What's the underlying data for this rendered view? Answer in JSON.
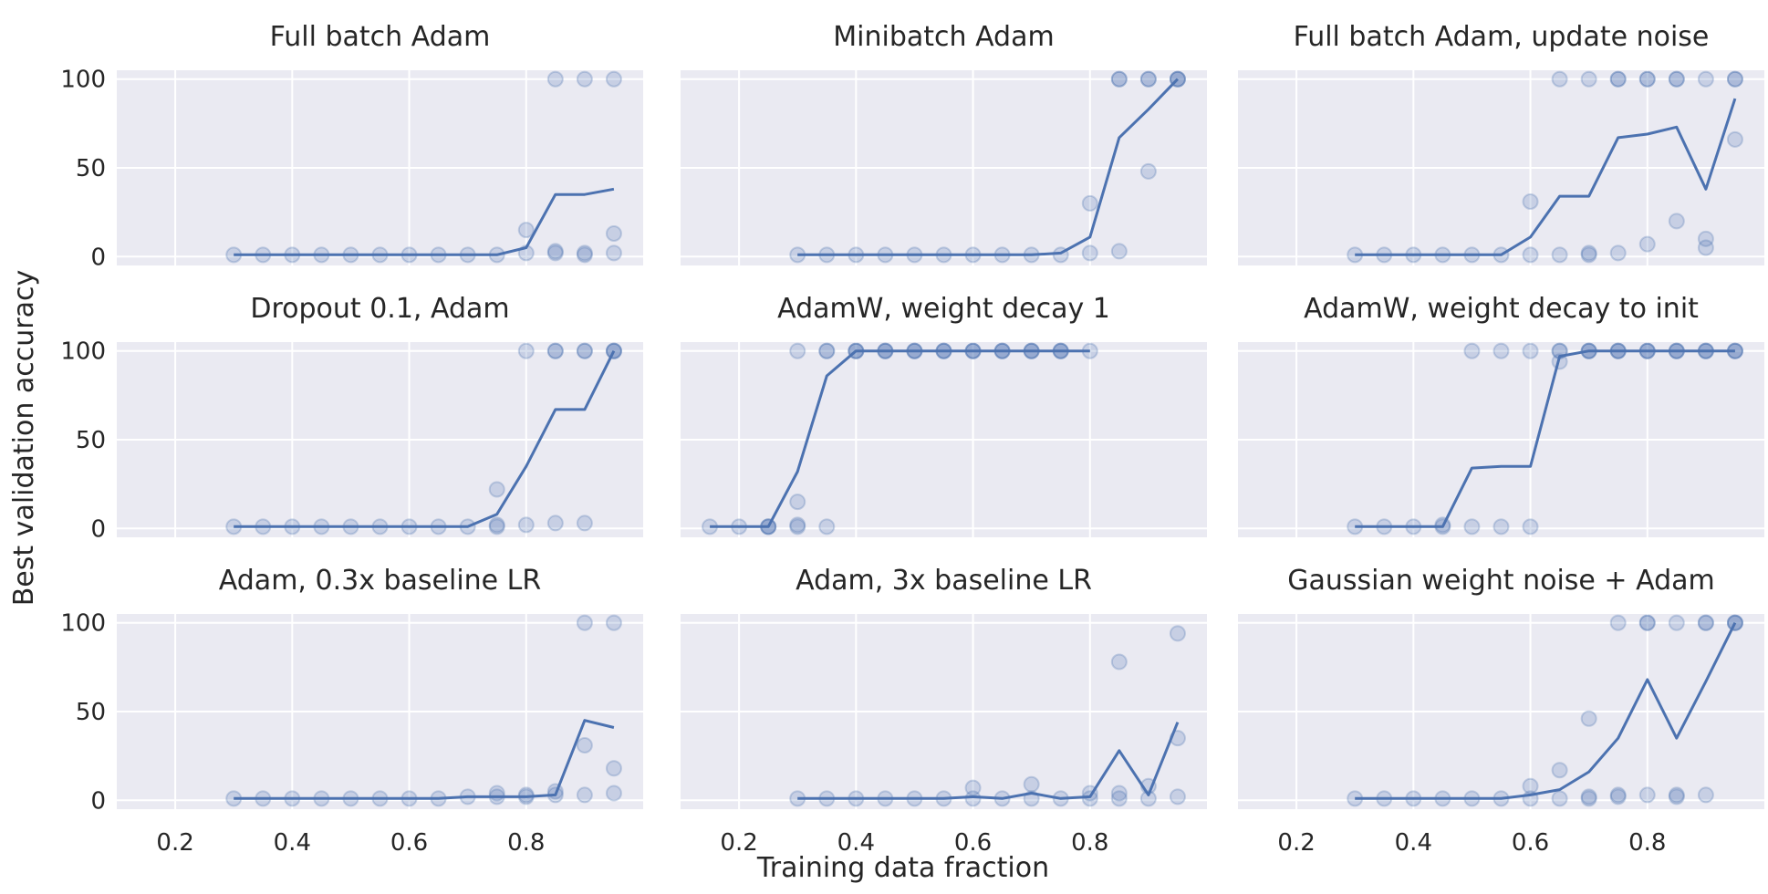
{
  "chart_data": {
    "type": "scatter",
    "xlabel": "Training data fraction",
    "ylabel": "Best validation accuracy",
    "xlim": [
      0.1,
      1.0
    ],
    "ylim": [
      -5,
      105
    ],
    "x_ticks": [
      0.2,
      0.4,
      0.6,
      0.8
    ],
    "x_tick_labels": [
      "0.2",
      "0.4",
      "0.6",
      "0.8"
    ],
    "y_ticks": [
      0,
      50,
      100
    ],
    "y_tick_labels": [
      "0",
      "50",
      "100"
    ],
    "grid": true,
    "color": "#4C72B0",
    "background": "#EAEAF2",
    "panels": [
      {
        "title": "Full batch Adam",
        "line": {
          "x": [
            0.3,
            0.35,
            0.4,
            0.45,
            0.5,
            0.55,
            0.6,
            0.65,
            0.7,
            0.75,
            0.8,
            0.85,
            0.9,
            0.95
          ],
          "y": [
            1,
            1,
            1,
            1,
            1,
            1,
            1,
            1,
            1,
            1,
            5,
            35,
            35,
            38
          ]
        },
        "points": [
          [
            0.3,
            1
          ],
          [
            0.35,
            1
          ],
          [
            0.4,
            1
          ],
          [
            0.45,
            1
          ],
          [
            0.5,
            1
          ],
          [
            0.55,
            1
          ],
          [
            0.6,
            1
          ],
          [
            0.65,
            1
          ],
          [
            0.7,
            1
          ],
          [
            0.75,
            1
          ],
          [
            0.8,
            15
          ],
          [
            0.8,
            2
          ],
          [
            0.85,
            100
          ],
          [
            0.85,
            3
          ],
          [
            0.85,
            2
          ],
          [
            0.9,
            100
          ],
          [
            0.9,
            2
          ],
          [
            0.9,
            1
          ],
          [
            0.95,
            100
          ],
          [
            0.95,
            13
          ],
          [
            0.95,
            2
          ]
        ]
      },
      {
        "title": "Minibatch Adam",
        "line": {
          "x": [
            0.3,
            0.35,
            0.4,
            0.45,
            0.5,
            0.55,
            0.6,
            0.65,
            0.7,
            0.75,
            0.8,
            0.85,
            0.9,
            0.95
          ],
          "y": [
            1,
            1,
            1,
            1,
            1,
            1,
            1,
            1,
            1,
            2,
            11,
            67,
            83,
            100
          ]
        },
        "points": [
          [
            0.3,
            1
          ],
          [
            0.35,
            1
          ],
          [
            0.4,
            1
          ],
          [
            0.45,
            1
          ],
          [
            0.5,
            1
          ],
          [
            0.55,
            1
          ],
          [
            0.6,
            1
          ],
          [
            0.65,
            1
          ],
          [
            0.7,
            1
          ],
          [
            0.75,
            1
          ],
          [
            0.8,
            30
          ],
          [
            0.8,
            2
          ],
          [
            0.85,
            100
          ],
          [
            0.85,
            100
          ],
          [
            0.85,
            3
          ],
          [
            0.9,
            100
          ],
          [
            0.9,
            100
          ],
          [
            0.9,
            48
          ],
          [
            0.95,
            100
          ],
          [
            0.95,
            100
          ],
          [
            0.95,
            100
          ]
        ]
      },
      {
        "title": "Full batch Adam, update noise",
        "line": {
          "x": [
            0.3,
            0.35,
            0.4,
            0.45,
            0.5,
            0.55,
            0.6,
            0.65,
            0.7,
            0.75,
            0.8,
            0.85,
            0.9,
            0.95
          ],
          "y": [
            1,
            1,
            1,
            1,
            1,
            1,
            11,
            34,
            34,
            67,
            69,
            73,
            38,
            89
          ]
        },
        "points": [
          [
            0.3,
            1
          ],
          [
            0.35,
            1
          ],
          [
            0.4,
            1
          ],
          [
            0.45,
            1
          ],
          [
            0.5,
            1
          ],
          [
            0.55,
            1
          ],
          [
            0.6,
            31
          ],
          [
            0.6,
            1
          ],
          [
            0.65,
            100
          ],
          [
            0.65,
            1
          ],
          [
            0.7,
            100
          ],
          [
            0.7,
            1
          ],
          [
            0.7,
            2
          ],
          [
            0.75,
            100
          ],
          [
            0.75,
            100
          ],
          [
            0.75,
            2
          ],
          [
            0.8,
            100
          ],
          [
            0.8,
            100
          ],
          [
            0.8,
            7
          ],
          [
            0.85,
            100
          ],
          [
            0.85,
            100
          ],
          [
            0.85,
            20
          ],
          [
            0.9,
            100
          ],
          [
            0.9,
            10
          ],
          [
            0.9,
            5
          ],
          [
            0.95,
            100
          ],
          [
            0.95,
            100
          ],
          [
            0.95,
            66
          ]
        ]
      },
      {
        "title": "Dropout 0.1, Adam",
        "line": {
          "x": [
            0.3,
            0.35,
            0.4,
            0.45,
            0.5,
            0.55,
            0.6,
            0.65,
            0.7,
            0.75,
            0.8,
            0.85,
            0.9,
            0.95
          ],
          "y": [
            1,
            1,
            1,
            1,
            1,
            1,
            1,
            1,
            1,
            8,
            35,
            67,
            67,
            100
          ]
        },
        "points": [
          [
            0.3,
            1
          ],
          [
            0.35,
            1
          ],
          [
            0.4,
            1
          ],
          [
            0.45,
            1
          ],
          [
            0.5,
            1
          ],
          [
            0.55,
            1
          ],
          [
            0.6,
            1
          ],
          [
            0.65,
            1
          ],
          [
            0.7,
            1
          ],
          [
            0.75,
            22
          ],
          [
            0.75,
            2
          ],
          [
            0.75,
            1
          ],
          [
            0.8,
            100
          ],
          [
            0.8,
            2
          ],
          [
            0.85,
            100
          ],
          [
            0.85,
            100
          ],
          [
            0.85,
            3
          ],
          [
            0.9,
            100
          ],
          [
            0.9,
            100
          ],
          [
            0.9,
            3
          ],
          [
            0.95,
            100
          ],
          [
            0.95,
            100
          ],
          [
            0.95,
            100
          ]
        ]
      },
      {
        "title": "AdamW, weight decay 1",
        "line": {
          "x": [
            0.15,
            0.2,
            0.25,
            0.3,
            0.35,
            0.4,
            0.45,
            0.5,
            0.55,
            0.6,
            0.65,
            0.7,
            0.75,
            0.8
          ],
          "y": [
            1,
            1,
            1,
            32,
            86,
            100,
            100,
            100,
            100,
            100,
            100,
            100,
            100,
            100
          ]
        },
        "points": [
          [
            0.15,
            1
          ],
          [
            0.2,
            1
          ],
          [
            0.25,
            1
          ],
          [
            0.25,
            1
          ],
          [
            0.25,
            1
          ],
          [
            0.3,
            100
          ],
          [
            0.3,
            15
          ],
          [
            0.3,
            2
          ],
          [
            0.3,
            1
          ],
          [
            0.35,
            100
          ],
          [
            0.35,
            100
          ],
          [
            0.35,
            1
          ],
          [
            0.4,
            100
          ],
          [
            0.4,
            100
          ],
          [
            0.4,
            100
          ],
          [
            0.45,
            100
          ],
          [
            0.45,
            100
          ],
          [
            0.45,
            100
          ],
          [
            0.5,
            100
          ],
          [
            0.5,
            100
          ],
          [
            0.5,
            100
          ],
          [
            0.55,
            100
          ],
          [
            0.55,
            100
          ],
          [
            0.55,
            100
          ],
          [
            0.6,
            100
          ],
          [
            0.6,
            100
          ],
          [
            0.6,
            100
          ],
          [
            0.65,
            100
          ],
          [
            0.65,
            100
          ],
          [
            0.65,
            100
          ],
          [
            0.7,
            100
          ],
          [
            0.7,
            100
          ],
          [
            0.7,
            100
          ],
          [
            0.75,
            100
          ],
          [
            0.75,
            100
          ],
          [
            0.75,
            100
          ],
          [
            0.8,
            100
          ]
        ]
      },
      {
        "title": "AdamW, weight decay to init",
        "line": {
          "x": [
            0.3,
            0.35,
            0.4,
            0.45,
            0.5,
            0.55,
            0.6,
            0.65,
            0.7,
            0.75,
            0.8,
            0.85,
            0.9,
            0.95
          ],
          "y": [
            1,
            1,
            1,
            1,
            34,
            35,
            35,
            97,
            100,
            100,
            100,
            100,
            100,
            100
          ]
        },
        "points": [
          [
            0.3,
            1
          ],
          [
            0.35,
            1
          ],
          [
            0.4,
            1
          ],
          [
            0.45,
            1
          ],
          [
            0.45,
            2
          ],
          [
            0.5,
            100
          ],
          [
            0.5,
            1
          ],
          [
            0.55,
            100
          ],
          [
            0.55,
            1
          ],
          [
            0.6,
            100
          ],
          [
            0.6,
            1
          ],
          [
            0.65,
            100
          ],
          [
            0.65,
            100
          ],
          [
            0.65,
            94
          ],
          [
            0.7,
            100
          ],
          [
            0.7,
            100
          ],
          [
            0.7,
            100
          ],
          [
            0.75,
            100
          ],
          [
            0.75,
            100
          ],
          [
            0.75,
            100
          ],
          [
            0.8,
            100
          ],
          [
            0.8,
            100
          ],
          [
            0.8,
            100
          ],
          [
            0.85,
            100
          ],
          [
            0.85,
            100
          ],
          [
            0.85,
            100
          ],
          [
            0.9,
            100
          ],
          [
            0.9,
            100
          ],
          [
            0.9,
            100
          ],
          [
            0.95,
            100
          ],
          [
            0.95,
            100
          ],
          [
            0.95,
            100
          ]
        ]
      },
      {
        "title": "Adam, 0.3x baseline LR",
        "line": {
          "x": [
            0.3,
            0.35,
            0.4,
            0.45,
            0.5,
            0.55,
            0.6,
            0.65,
            0.7,
            0.75,
            0.8,
            0.85,
            0.9,
            0.95
          ],
          "y": [
            1,
            1,
            1,
            1,
            1,
            1,
            1,
            1,
            2,
            2,
            2,
            3,
            45,
            41
          ]
        },
        "points": [
          [
            0.3,
            1
          ],
          [
            0.35,
            1
          ],
          [
            0.4,
            1
          ],
          [
            0.45,
            1
          ],
          [
            0.5,
            1
          ],
          [
            0.55,
            1
          ],
          [
            0.6,
            1
          ],
          [
            0.65,
            1
          ],
          [
            0.7,
            2
          ],
          [
            0.75,
            4
          ],
          [
            0.75,
            2
          ],
          [
            0.8,
            3
          ],
          [
            0.8,
            2
          ],
          [
            0.85,
            5
          ],
          [
            0.85,
            3
          ],
          [
            0.9,
            100
          ],
          [
            0.9,
            31
          ],
          [
            0.9,
            3
          ],
          [
            0.95,
            100
          ],
          [
            0.95,
            18
          ],
          [
            0.95,
            4
          ]
        ]
      },
      {
        "title": "Adam, 3x baseline LR",
        "line": {
          "x": [
            0.3,
            0.35,
            0.4,
            0.45,
            0.5,
            0.55,
            0.6,
            0.65,
            0.7,
            0.75,
            0.8,
            0.85,
            0.9,
            0.95
          ],
          "y": [
            1,
            1,
            1,
            1,
            1,
            1,
            2,
            1,
            4,
            1,
            2,
            28,
            3,
            44
          ]
        },
        "points": [
          [
            0.3,
            1
          ],
          [
            0.35,
            1
          ],
          [
            0.4,
            1
          ],
          [
            0.45,
            1
          ],
          [
            0.5,
            1
          ],
          [
            0.55,
            1
          ],
          [
            0.6,
            7
          ],
          [
            0.6,
            1
          ],
          [
            0.65,
            1
          ],
          [
            0.7,
            9
          ],
          [
            0.7,
            1
          ],
          [
            0.75,
            1
          ],
          [
            0.8,
            4
          ],
          [
            0.8,
            1
          ],
          [
            0.85,
            78
          ],
          [
            0.85,
            4
          ],
          [
            0.85,
            1
          ],
          [
            0.9,
            8
          ],
          [
            0.9,
            1
          ],
          [
            0.95,
            94
          ],
          [
            0.95,
            35
          ],
          [
            0.95,
            2
          ]
        ]
      },
      {
        "title": "Gaussian weight noise + Adam",
        "line": {
          "x": [
            0.3,
            0.35,
            0.4,
            0.45,
            0.5,
            0.55,
            0.6,
            0.65,
            0.7,
            0.75,
            0.8,
            0.85,
            0.9,
            0.95
          ],
          "y": [
            1,
            1,
            1,
            1,
            1,
            1,
            3,
            6,
            16,
            35,
            68,
            35,
            67,
            100
          ]
        },
        "points": [
          [
            0.3,
            1
          ],
          [
            0.35,
            1
          ],
          [
            0.4,
            1
          ],
          [
            0.45,
            1
          ],
          [
            0.5,
            1
          ],
          [
            0.55,
            1
          ],
          [
            0.6,
            8
          ],
          [
            0.6,
            1
          ],
          [
            0.65,
            17
          ],
          [
            0.65,
            1
          ],
          [
            0.7,
            46
          ],
          [
            0.7,
            2
          ],
          [
            0.7,
            1
          ],
          [
            0.75,
            100
          ],
          [
            0.75,
            3
          ],
          [
            0.75,
            2
          ],
          [
            0.8,
            100
          ],
          [
            0.8,
            100
          ],
          [
            0.8,
            3
          ],
          [
            0.85,
            100
          ],
          [
            0.85,
            3
          ],
          [
            0.85,
            2
          ],
          [
            0.9,
            100
          ],
          [
            0.9,
            100
          ],
          [
            0.9,
            3
          ],
          [
            0.95,
            100
          ],
          [
            0.95,
            100
          ],
          [
            0.95,
            100
          ]
        ]
      }
    ]
  }
}
